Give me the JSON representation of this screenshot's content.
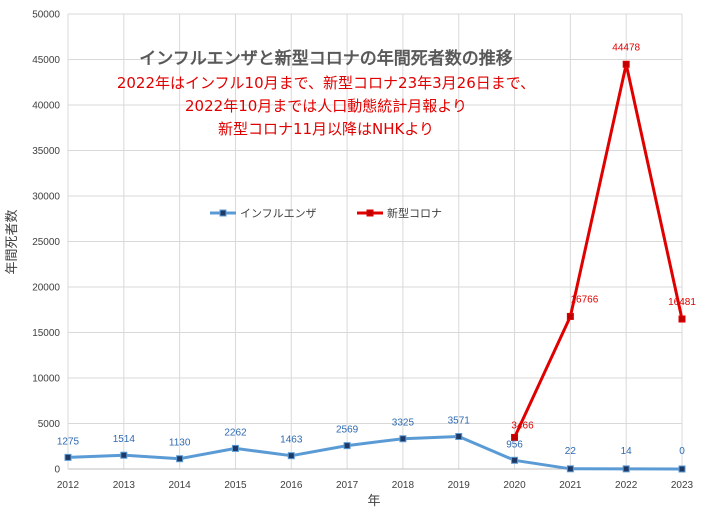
{
  "chart_data": {
    "type": "line",
    "title": "インフルエンザと新型コロナの年間死者数の推移",
    "subtitle_lines": [
      "2022年はインフル10月まで、新型コロナ23年3月26日まで、",
      "2022年10月までは人口動態統計月報より",
      "新型コロナ11月以降はNHKより"
    ],
    "xlabel": "年",
    "ylabel": "年間死者数",
    "ylim": [
      0,
      50000
    ],
    "yticks": [
      0,
      5000,
      10000,
      15000,
      20000,
      25000,
      30000,
      35000,
      40000,
      45000,
      50000
    ],
    "x": [
      "2012",
      "2013",
      "2014",
      "2015",
      "2016",
      "2017",
      "2018",
      "2019",
      "2020",
      "2021",
      "2022",
      "2023"
    ],
    "grid": true,
    "legend_position": "upper-left-center",
    "series": [
      {
        "name": "インフルエンザ",
        "color": "#5b9bd5",
        "label_color": "#2e6ab1",
        "values": [
          1275,
          1514,
          1130,
          2262,
          1463,
          2569,
          3325,
          3571,
          956,
          22,
          14,
          0
        ],
        "labels": [
          "1275",
          "1514",
          "1130",
          "2262",
          "1463",
          "2569",
          "3325",
          "3571",
          "956",
          "22",
          "14",
          "0"
        ]
      },
      {
        "name": "新型コロナ",
        "color": "#e00000",
        "label_color": "#e00000",
        "values": [
          null,
          null,
          null,
          null,
          null,
          null,
          null,
          null,
          3466,
          16766,
          44478,
          16481
        ],
        "labels": [
          null,
          null,
          null,
          null,
          null,
          null,
          null,
          null,
          "3466",
          "16766",
          "44478",
          "16481"
        ]
      }
    ]
  }
}
